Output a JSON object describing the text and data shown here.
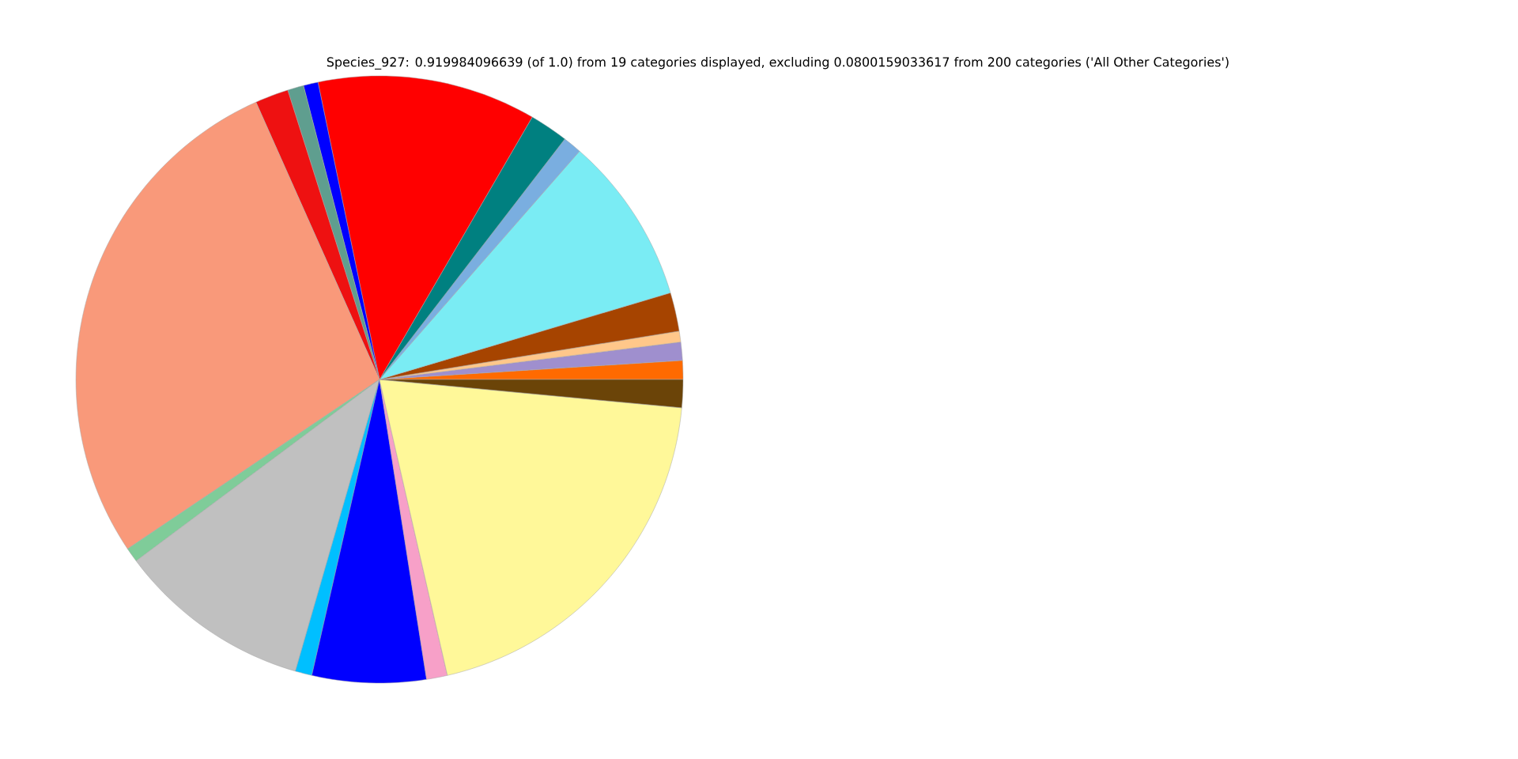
{
  "chart_data": {
    "type": "pie",
    "title": "Species_927: 0.919984096639 (of 1.0) from 19 categories displayed, excluding 0.0800159033617 from 200 categories ('All Other Categories')",
    "categories": [
      null,
      null,
      null,
      null,
      null,
      null,
      null,
      null,
      null,
      null,
      null,
      null,
      null,
      null,
      null,
      null,
      null,
      null,
      null
    ],
    "values": [
      1.0,
      0.97,
      0.58,
      2.06,
      8.94,
      1.0,
      2.06,
      11.64,
      0.78,
      0.86,
      1.78,
      27.75,
      0.78,
      10.33,
      0.89,
      6.06,
      1.11,
      19.92,
      1.49
    ],
    "colors": [
      "#ff6a00",
      "#9f8fce",
      "#ffc78a",
      "#a64400",
      "#7aecf4",
      "#7aaee0",
      "#008080",
      "#ff0000",
      "#0000ff",
      "#5f9e8f",
      "#ee1111",
      "#f9997a",
      "#7fcc99",
      "#c0c0c0",
      "#00bfff",
      "#0000ff",
      "#f7a0c8",
      "#fff899",
      "#6b4408"
    ]
  }
}
